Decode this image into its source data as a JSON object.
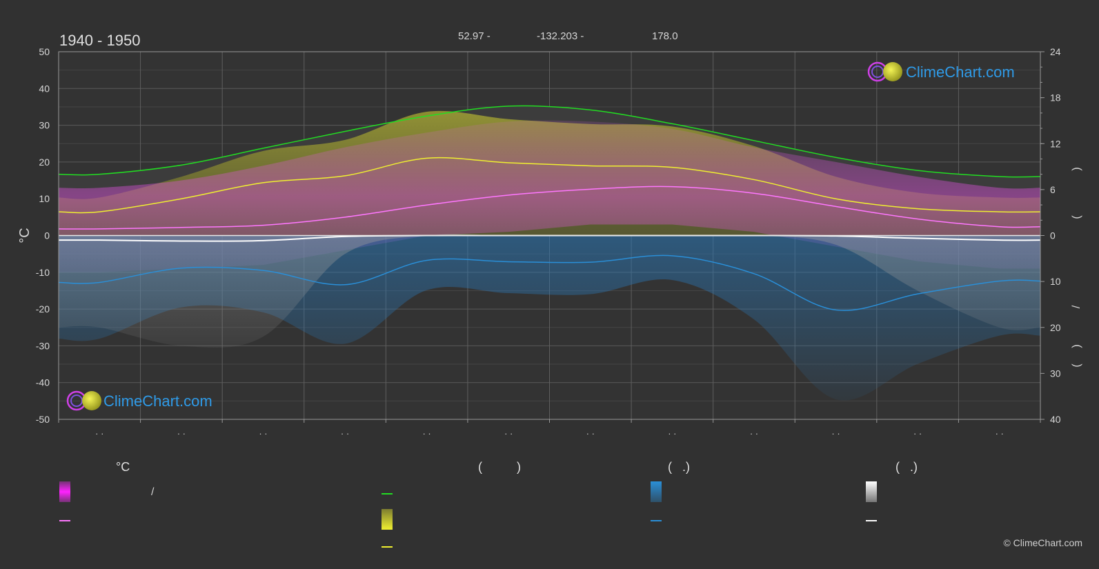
{
  "header": {
    "period": "1940 - 1950",
    "lat": "52.97 -",
    "lon": "-132.203 -",
    "elevation": "178.0"
  },
  "brand": {
    "logo_text": "ClimeChart.com",
    "copyright": "© ClimeChart.com"
  },
  "colors": {
    "background": "#313131",
    "daylight": "#22dd22",
    "sunshine": "#f0f030",
    "temperature": "#ff77ff",
    "rain": "#2a8fd8",
    "snow": "#ffffff",
    "logo_blue": "#2f9be8"
  },
  "legend": {
    "temp_header": "°C",
    "sun_header": "(          )",
    "rain_header": "(   .)",
    "snow_header": "(   .)",
    "slash": "/"
  },
  "chart_data": {
    "type": "line",
    "x": [
      "Jan",
      "Feb",
      "Mar",
      "Apr",
      "May",
      "Jun",
      "Jul",
      "Aug",
      "Sep",
      "Oct",
      "Nov",
      "Dec"
    ],
    "axes": {
      "left": {
        "label": "°C",
        "min": -50,
        "max": 50,
        "ticks": [
          50,
          40,
          30,
          20,
          10,
          0,
          -10,
          -20,
          -30,
          -40,
          -50
        ]
      },
      "right_top": {
        "min": 0,
        "max": 24,
        "ticks": [
          24,
          18,
          12,
          6,
          0
        ]
      },
      "right_bottom": {
        "min": 0,
        "max": 40,
        "ticks": [
          10,
          20,
          30,
          40
        ]
      },
      "right_label_glyphs": [
        ")",
        "(",
        "/",
        ")",
        "("
      ]
    },
    "grid": true,
    "series": [
      {
        "key": "daylight",
        "axis": "right_top",
        "values": [
          8.0,
          9.2,
          11.4,
          13.6,
          15.6,
          16.9,
          16.4,
          14.6,
          12.4,
          10.2,
          8.5,
          7.7
        ]
      },
      {
        "key": "sunshine",
        "axis": "right_top",
        "values": [
          3.1,
          4.8,
          6.9,
          7.8,
          10.1,
          9.5,
          9.1,
          8.9,
          7.3,
          4.8,
          3.5,
          3.1
        ]
      },
      {
        "key": "temp_mean",
        "axis": "left",
        "values": [
          1.8,
          2.2,
          2.8,
          5.0,
          8.3,
          11.0,
          12.6,
          13.3,
          11.5,
          7.9,
          4.5,
          2.4
        ]
      },
      {
        "key": "temp_max",
        "axis": "left",
        "values": [
          13,
          15,
          19,
          24,
          28,
          31,
          31,
          29,
          24,
          20,
          16,
          13
        ]
      },
      {
        "key": "temp_min",
        "axis": "left",
        "values": [
          -10,
          -9,
          -8,
          -4,
          0,
          1,
          3,
          3,
          1,
          -3,
          -7,
          -9
        ]
      },
      {
        "key": "rain",
        "axis": "right_bottom",
        "values": [
          10.2,
          7.1,
          7.6,
          10.7,
          5.4,
          5.7,
          5.8,
          4.4,
          8.3,
          16.2,
          12.7,
          9.9
        ]
      },
      {
        "key": "snow",
        "axis": "right_bottom",
        "values": [
          1.0,
          1.2,
          1.1,
          0.2,
          0.0,
          0.0,
          0.0,
          0.0,
          0.0,
          0.1,
          0.6,
          1.0
        ]
      }
    ]
  }
}
